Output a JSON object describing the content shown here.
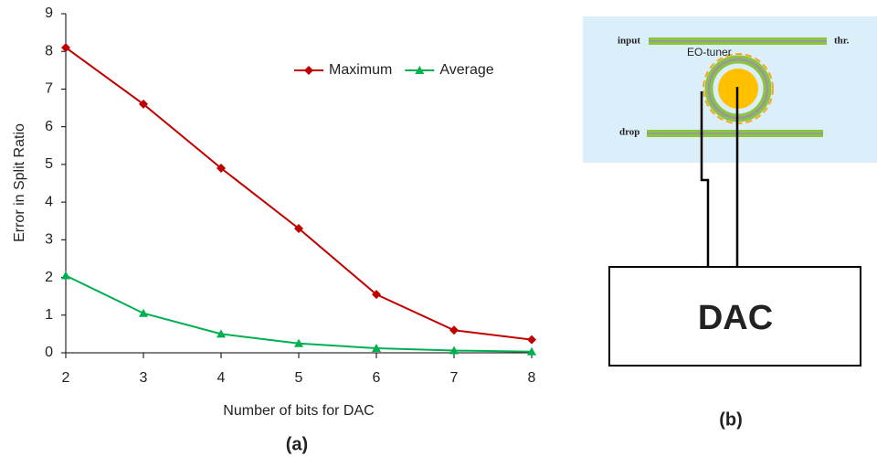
{
  "chart_data": {
    "type": "line",
    "x_label": "Number of bits for DAC",
    "y_label": "Error in Split Ratio",
    "caption": "(a)",
    "x": [
      2,
      3,
      4,
      5,
      6,
      7,
      8
    ],
    "series": [
      {
        "name": "Maximum",
        "color": "#c00000",
        "marker": "diamond",
        "values": [
          8.1,
          6.6,
          4.9,
          3.3,
          1.55,
          0.6,
          0.35
        ]
      },
      {
        "name": "Average",
        "color": "#00b050",
        "marker": "triangle",
        "values": [
          2.05,
          1.05,
          0.5,
          0.25,
          0.12,
          0.06,
          0.03
        ]
      }
    ],
    "xlim": [
      2,
      8
    ],
    "xticks": [
      2,
      3,
      4,
      5,
      6,
      7,
      8
    ],
    "ylim": [
      0,
      9
    ],
    "yticks": [
      0,
      1,
      2,
      3,
      4,
      5,
      6,
      7,
      8,
      9
    ],
    "grid": false,
    "legend": "upper right"
  },
  "diagram": {
    "input": "input",
    "through": "thr.",
    "tuner": "EO-tuner",
    "drop": "drop",
    "dac": "DAC",
    "caption": "(b)"
  }
}
